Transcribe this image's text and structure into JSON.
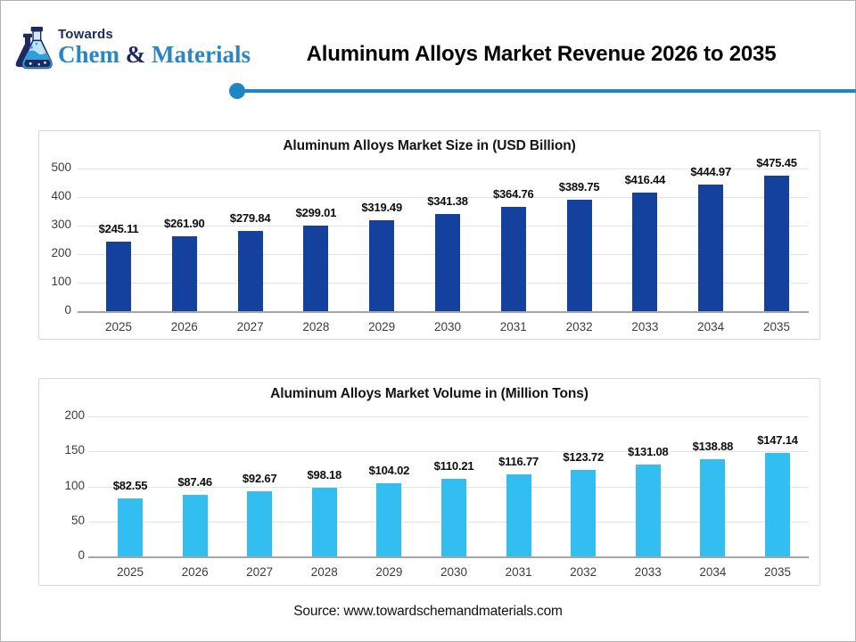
{
  "header": {
    "logo": {
      "top_text": "Towards",
      "chem": "Chem",
      "amp": " & ",
      "materials": "Materials",
      "navy": "#1e2a5e",
      "blue": "#2a85c5"
    },
    "title": "Aluminum Alloys Market Revenue 2026 to 2035",
    "divider_color": "#1c87c5"
  },
  "chart_data": [
    {
      "type": "bar",
      "title": "Aluminum Alloys Market Size in (USD Billion)",
      "categories": [
        "2025",
        "2026",
        "2027",
        "2028",
        "2029",
        "2030",
        "2031",
        "2032",
        "2033",
        "2034",
        "2035"
      ],
      "values": [
        245.11,
        261.9,
        279.84,
        299.01,
        319.49,
        341.38,
        364.76,
        389.75,
        416.44,
        444.97,
        475.45
      ],
      "labels": [
        "$245.11",
        "$261.90",
        "$279.84",
        "$299.01",
        "$319.49",
        "$341.38",
        "$364.76",
        "$389.75",
        "$416.44",
        "$444.97",
        "$475.45"
      ],
      "bar_color": "#14409e",
      "xlabel": "",
      "ylabel": "",
      "ylim": [
        0,
        500
      ],
      "yticks": [
        0,
        100,
        200,
        300,
        400,
        500
      ],
      "grid": true,
      "legend_position": "none"
    },
    {
      "type": "bar",
      "title": "Aluminum Alloys Market Volume in (Million Tons)",
      "categories": [
        "2025",
        "2026",
        "2027",
        "2028",
        "2029",
        "2030",
        "2031",
        "2032",
        "2033",
        "2034",
        "2035"
      ],
      "values": [
        82.55,
        87.46,
        92.67,
        98.18,
        104.02,
        110.21,
        116.77,
        123.72,
        131.08,
        138.88,
        147.14
      ],
      "labels": [
        "$82.55",
        "$87.46",
        "$92.67",
        "$98.18",
        "$104.02",
        "$110.21",
        "$116.77",
        "$123.72",
        "$131.08",
        "$138.88",
        "$147.14"
      ],
      "bar_color": "#33bef2",
      "xlabel": "",
      "ylabel": "",
      "ylim": [
        0,
        200
      ],
      "yticks": [
        0,
        50,
        100,
        150,
        200
      ],
      "grid": true,
      "legend_position": "none"
    }
  ],
  "footer": {
    "source": "Source: www.towardschemandmaterials.com"
  }
}
